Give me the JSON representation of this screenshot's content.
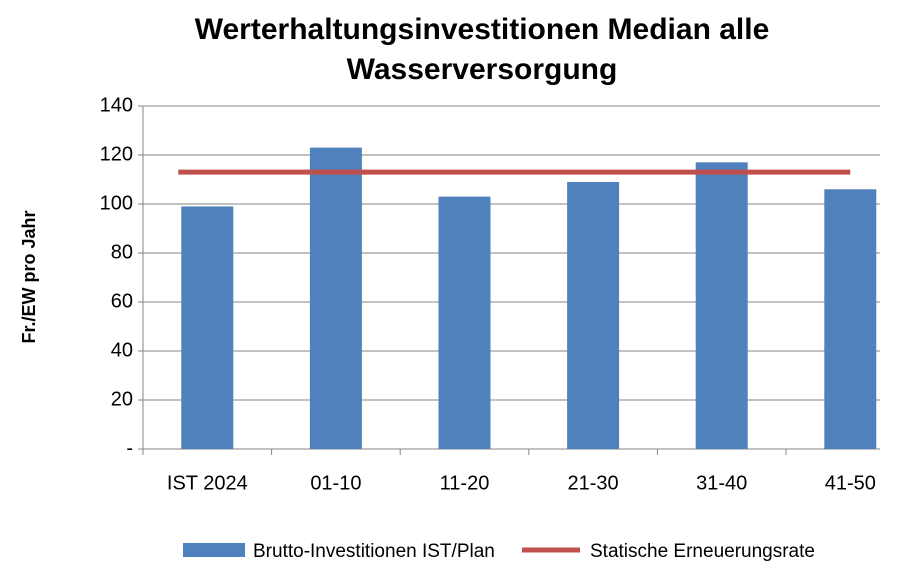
{
  "chart_data": {
    "type": "bar",
    "title": "Werterhaltungsinvestitionen Median alle Wasserversorgung",
    "y_label": "Fr./EW pro Jahr",
    "categories": [
      "IST 2024",
      "01-10",
      "11-20",
      "21-30",
      "31-40",
      "41-50"
    ],
    "series": [
      {
        "name": "Brutto-Investitionen IST/Plan",
        "type": "bar",
        "color": "#4f81bd",
        "values": [
          99,
          123,
          103,
          109,
          117,
          106
        ]
      },
      {
        "name": "Statische Erneuerungsrate",
        "type": "line",
        "color": "#c0504d",
        "values": [
          113,
          113,
          113,
          113,
          113,
          113
        ]
      }
    ],
    "ylim": [
      0,
      140
    ],
    "yticks": [
      {
        "value": 0,
        "label": "-"
      },
      20,
      40,
      60,
      80,
      100,
      120,
      140
    ],
    "grid": true,
    "legend": "bottom"
  }
}
